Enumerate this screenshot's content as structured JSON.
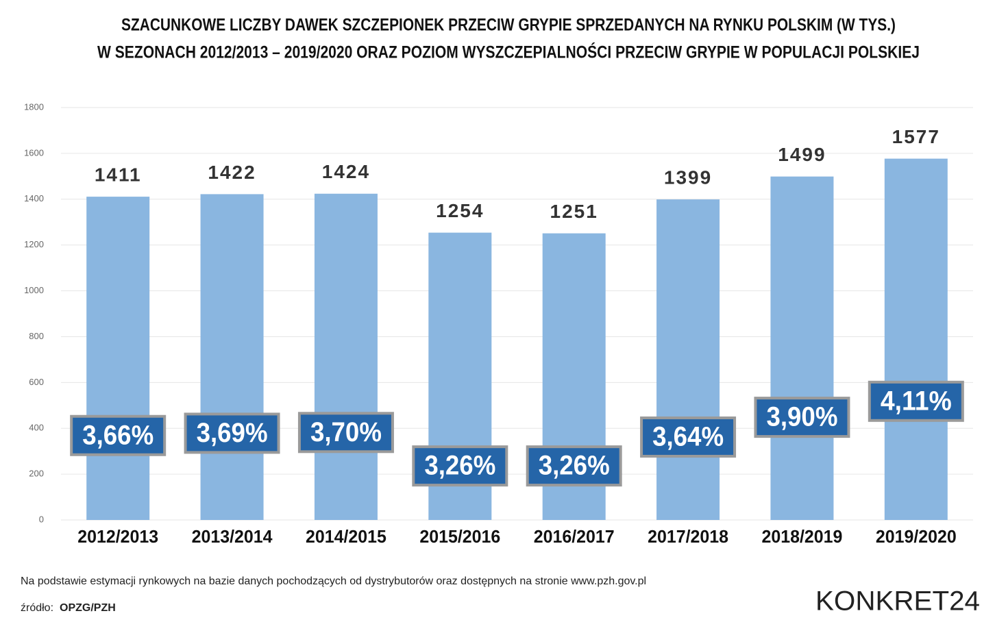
{
  "chart_data": {
    "type": "bar",
    "title": [
      "SZACUNKOWE LICZBY DAWEK SZCZEPIONEK PRZECIW GRYPIE SPRZEDANYCH NA RYNKU POLSKIM (W TYS.)",
      "W SEZONACH 2012/2013 – 2019/2020 ORAZ POZIOM WYSZCZEPIALNOŚCI PRZECIW GRYPIE W POPULACJI POLSKIEJ"
    ],
    "categories": [
      "2012/2013",
      "2013/2014",
      "2014/2015",
      "2015/2016",
      "2016/2017",
      "2017/2018",
      "2018/2019",
      "2019/2020"
    ],
    "values": [
      1411,
      1422,
      1424,
      1254,
      1251,
      1399,
      1499,
      1577
    ],
    "color": "#8ab6e0",
    "rates": {
      "values": [
        3.66,
        3.69,
        3.7,
        3.26,
        3.26,
        3.64,
        3.9,
        4.11
      ],
      "value_labels": [
        "3,66%",
        "3,69%",
        "3,70%",
        "3,26%",
        "3,26%",
        "3,64%",
        "3,90%",
        "4,11%"
      ],
      "color": "#2565a8"
    },
    "ylim": [
      0,
      1800
    ],
    "yticks": [
      0,
      200,
      400,
      600,
      800,
      1000,
      1200,
      1400,
      1600,
      1800
    ],
    "grid": true,
    "note": "Na podstawie estymacji rynkowych na bazie danych pochodzących od dystrybutorów oraz dostępnych na stronie www.pzh.gov.pl",
    "source_label": "źródło:",
    "source": "OPZG/PZH",
    "logo": "KONKRET24"
  }
}
